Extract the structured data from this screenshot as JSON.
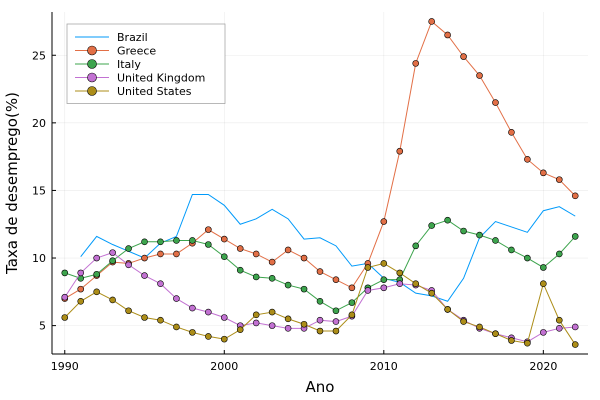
{
  "chart_data": {
    "type": "line",
    "title": "",
    "xlabel": "Ano",
    "ylabel": "Taxa de desemprego(%)",
    "xlim": [
      1989.2,
      2022.8
    ],
    "ylim": [
      2.9,
      28.2
    ],
    "xticks": [
      1990,
      2000,
      2010,
      2020
    ],
    "yticks": [
      5,
      10,
      15,
      20,
      25
    ],
    "grid": true,
    "legend_position": "top-left",
    "x": [
      1990,
      1991,
      1992,
      1993,
      1994,
      1995,
      1996,
      1997,
      1998,
      1999,
      2000,
      2001,
      2002,
      2003,
      2004,
      2005,
      2006,
      2007,
      2008,
      2009,
      2010,
      2011,
      2012,
      2013,
      2014,
      2015,
      2016,
      2017,
      2018,
      2019,
      2020,
      2021,
      2022
    ],
    "series": [
      {
        "name": "Brazil",
        "color": "#009AFA",
        "markers": false,
        "values": [
          null,
          10.1,
          11.6,
          11.0,
          10.5,
          10.0,
          11.1,
          11.6,
          14.7,
          14.7,
          13.9,
          12.5,
          12.9,
          13.6,
          12.9,
          11.4,
          11.5,
          10.9,
          9.4,
          9.6,
          8.5,
          8.2,
          7.4,
          7.2,
          6.8,
          8.5,
          11.5,
          12.7,
          12.3,
          11.9,
          13.5,
          13.8,
          13.1
        ]
      },
      {
        "name": "Greece",
        "color": "#E26F46",
        "markers": true,
        "values": [
          7.0,
          7.7,
          8.7,
          9.7,
          9.6,
          10.0,
          10.3,
          10.3,
          11.1,
          12.1,
          11.4,
          10.7,
          10.3,
          9.7,
          10.6,
          10.0,
          9.0,
          8.4,
          7.8,
          9.6,
          12.7,
          17.9,
          24.4,
          27.5,
          26.5,
          24.9,
          23.5,
          21.5,
          19.3,
          17.3,
          16.3,
          15.8,
          14.6
        ]
      },
      {
        "name": "Italy",
        "color": "#3DA44D",
        "markers": true,
        "values": [
          8.9,
          8.5,
          8.8,
          9.8,
          10.7,
          11.2,
          11.2,
          11.3,
          11.3,
          11.0,
          10.1,
          9.1,
          8.6,
          8.5,
          8.0,
          7.7,
          6.8,
          6.1,
          6.7,
          7.8,
          8.4,
          8.4,
          10.9,
          12.4,
          12.8,
          12.0,
          11.7,
          11.3,
          10.6,
          10.0,
          9.3,
          10.3,
          11.6
        ]
      },
      {
        "name": "United Kingdom",
        "color": "#C271D2",
        "markers": true,
        "values": [
          7.1,
          8.9,
          10.0,
          10.4,
          9.5,
          8.7,
          8.1,
          7.0,
          6.3,
          6.0,
          5.6,
          5.0,
          5.2,
          5.0,
          4.8,
          4.8,
          5.4,
          5.3,
          5.7,
          7.6,
          7.8,
          8.1,
          8.0,
          7.6,
          6.2,
          5.4,
          4.8,
          4.4,
          4.1,
          3.8,
          4.5,
          4.8,
          4.9
        ]
      },
      {
        "name": "United States",
        "color": "#AC8D18",
        "markers": true,
        "values": [
          5.6,
          6.8,
          7.5,
          6.9,
          6.1,
          5.6,
          5.4,
          4.9,
          4.5,
          4.2,
          4.0,
          4.7,
          5.8,
          6.0,
          5.5,
          5.1,
          4.6,
          4.6,
          5.8,
          9.3,
          9.6,
          8.9,
          8.1,
          7.4,
          6.2,
          5.3,
          4.9,
          4.4,
          3.9,
          3.7,
          8.1,
          5.4,
          3.6
        ]
      }
    ]
  }
}
